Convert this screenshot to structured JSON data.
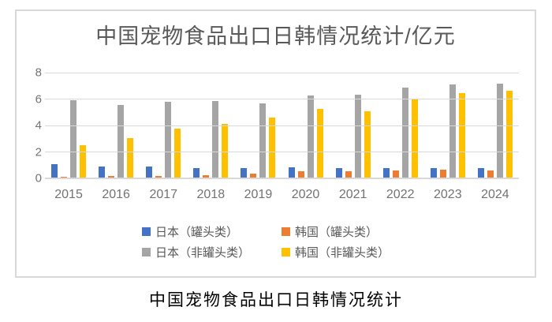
{
  "chart_data": {
    "type": "bar",
    "title": "中国宠物食品出口日韩情况统计/亿元",
    "categories": [
      "2015",
      "2016",
      "2017",
      "2018",
      "2019",
      "2020",
      "2021",
      "2022",
      "2023",
      "2024"
    ],
    "series": [
      {
        "name": "日本（罐头类）",
        "color": "#4472c4",
        "values": [
          1.05,
          0.9,
          0.9,
          0.8,
          0.8,
          0.85,
          0.8,
          0.75,
          0.8,
          0.8
        ]
      },
      {
        "name": "韩国（罐头类）",
        "color": "#ed7d31",
        "values": [
          0.12,
          0.2,
          0.2,
          0.25,
          0.35,
          0.55,
          0.55,
          0.6,
          0.65,
          0.62
        ]
      },
      {
        "name": "日本（非罐头类）",
        "color": "#a5a5a5",
        "values": [
          5.9,
          5.55,
          5.8,
          5.85,
          5.65,
          6.25,
          6.35,
          6.85,
          7.1,
          7.15
        ]
      },
      {
        "name": "韩国（非罐头类）",
        "color": "#ffc000",
        "values": [
          2.5,
          3.05,
          3.75,
          4.1,
          4.6,
          5.25,
          5.1,
          6.05,
          6.45,
          6.65
        ]
      }
    ],
    "xlabel": "",
    "ylabel": "",
    "ylim": [
      0,
      8
    ],
    "yticks": [
      0,
      2,
      4,
      6,
      8
    ],
    "grid": true,
    "legend_position": "bottom"
  },
  "caption": "中国宠物食品出口日韩情况统计",
  "colors": {
    "frame_border": "#d9d9d9",
    "gridline": "#d9d9d9",
    "title_text": "#595959",
    "axis_text": "#737373",
    "legend_text": "#595959",
    "caption_text": "#000000"
  }
}
